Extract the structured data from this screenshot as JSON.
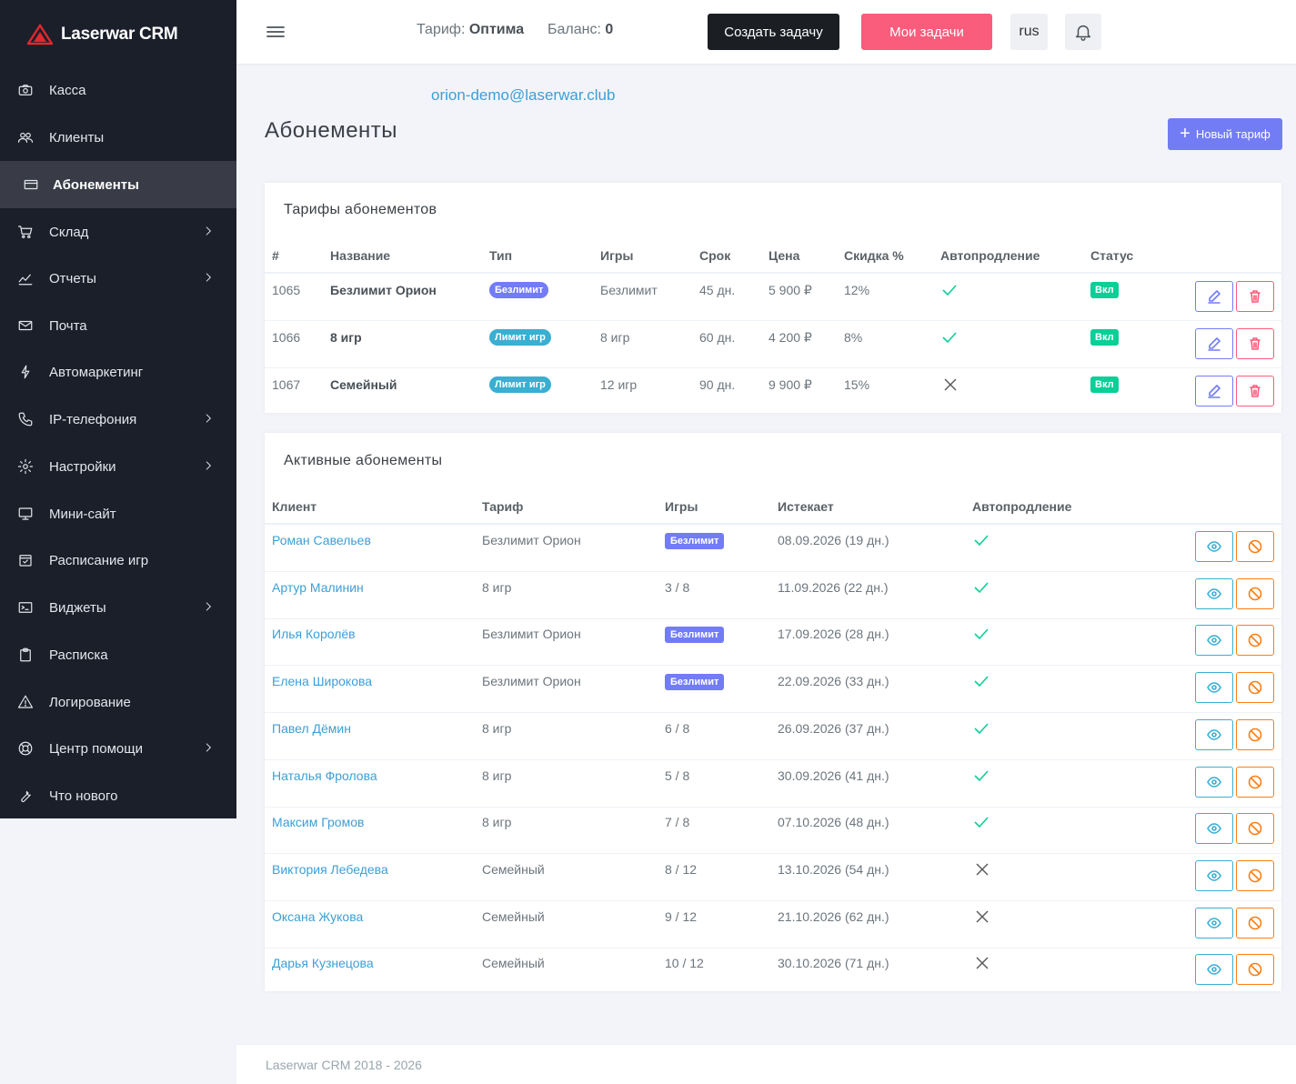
{
  "app": {
    "logo_text": "Laserwar CRM"
  },
  "sidebar": {
    "items": [
      {
        "label": "Касса",
        "icon": "camera-icon",
        "chevron": false,
        "active": false
      },
      {
        "label": "Клиенты",
        "icon": "users-icon",
        "chevron": false,
        "active": false
      },
      {
        "label": "Абонементы",
        "icon": "card-icon",
        "chevron": false,
        "active": true
      },
      {
        "label": "Склад",
        "icon": "cart-icon",
        "chevron": true,
        "active": false
      },
      {
        "label": "Отчеты",
        "icon": "chart-icon",
        "chevron": true,
        "active": false
      },
      {
        "label": "Почта",
        "icon": "mail-icon",
        "chevron": false,
        "active": false
      },
      {
        "label": "Автомаркетинг",
        "icon": "bolt-icon",
        "chevron": false,
        "active": false
      },
      {
        "label": "IP-телефония",
        "icon": "phone-icon",
        "chevron": true,
        "active": false
      },
      {
        "label": "Настройки",
        "icon": "gear-icon",
        "chevron": true,
        "active": false
      },
      {
        "label": "Мини-сайт",
        "icon": "monitor-icon",
        "chevron": false,
        "active": false
      },
      {
        "label": "Расписание игр",
        "icon": "calendar-check-icon",
        "chevron": false,
        "active": false
      },
      {
        "label": "Виджеты",
        "icon": "terminal-icon",
        "chevron": true,
        "active": false
      },
      {
        "label": "Расписка",
        "icon": "clipboard-icon",
        "chevron": false,
        "active": false
      },
      {
        "label": "Логирование",
        "icon": "warning-icon",
        "chevron": false,
        "active": false
      },
      {
        "label": "Центр помощи",
        "icon": "lifebuoy-icon",
        "chevron": true,
        "active": false
      },
      {
        "label": "Что нового",
        "icon": "wrench-icon",
        "chevron": false,
        "active": false
      }
    ]
  },
  "topbar": {
    "tarif_label": "Тариф:",
    "tarif_value": "Оптима",
    "balance_label": "Баланс:",
    "balance_value": "0",
    "create_task": "Создать задачу",
    "my_tasks": "Мои задачи",
    "lang": "rus"
  },
  "user_email": "orion-demo@laserwar.club",
  "page_title": "Абонементы",
  "new_tariff_button": "Новый тариф",
  "tariffs": {
    "title": "Тарифы абонементов",
    "columns": [
      "#",
      "Название",
      "Тип",
      "Игры",
      "Срок",
      "Цена",
      "Скидка %",
      "Автопродление",
      "Статус"
    ],
    "rows": [
      {
        "id": "1065",
        "name": "Безлимит Орион",
        "type": "Безлимит",
        "type_color": "#727cf5",
        "games": "Безлимит",
        "term": "45 дн.",
        "price": "5 900 ₽",
        "discount": "12%",
        "auto": true,
        "status": "Вкл"
      },
      {
        "id": "1066",
        "name": "8 игр",
        "type": "Лимит игр",
        "type_color": "#39afd1",
        "games": "8 игр",
        "term": "60 дн.",
        "price": "4 200 ₽",
        "discount": "8%",
        "auto": true,
        "status": "Вкл"
      },
      {
        "id": "1067",
        "name": "Семейный",
        "type": "Лимит игр",
        "type_color": "#39afd1",
        "games": "12 игр",
        "term": "90 дн.",
        "price": "9 900 ₽",
        "discount": "15%",
        "auto": false,
        "status": "Вкл"
      }
    ]
  },
  "active": {
    "title": "Активные абонементы",
    "columns": [
      "Клиент",
      "Тариф",
      "Игры",
      "Истекает",
      "Автопродление"
    ],
    "rows": [
      {
        "client": "Роман Савельев",
        "tariff": "Безлимит Орион",
        "games": "Безлимит",
        "games_badge": true,
        "expires": "08.09.2026 (19 дн.)",
        "auto": true
      },
      {
        "client": "Артур Малинин",
        "tariff": "8 игр",
        "games": "3 / 8",
        "games_badge": false,
        "expires": "11.09.2026 (22 дн.)",
        "auto": true
      },
      {
        "client": "Илья Королёв",
        "tariff": "Безлимит Орион",
        "games": "Безлимит",
        "games_badge": true,
        "expires": "17.09.2026 (28 дн.)",
        "auto": true
      },
      {
        "client": "Елена Широкова",
        "tariff": "Безлимит Орион",
        "games": "Безлимит",
        "games_badge": true,
        "expires": "22.09.2026 (33 дн.)",
        "auto": true
      },
      {
        "client": "Павел Дёмин",
        "tariff": "8 игр",
        "games": "6 / 8",
        "games_badge": false,
        "expires": "26.09.2026 (37 дн.)",
        "auto": true
      },
      {
        "client": "Наталья Фролова",
        "tariff": "8 игр",
        "games": "5 / 8",
        "games_badge": false,
        "expires": "30.09.2026 (41 дн.)",
        "auto": true
      },
      {
        "client": "Максим Громов",
        "tariff": "8 игр",
        "games": "7 / 8",
        "games_badge": false,
        "expires": "07.10.2026 (48 дн.)",
        "auto": true
      },
      {
        "client": "Виктория Лебедева",
        "tariff": "Семейный",
        "games": "8 / 12",
        "games_badge": false,
        "expires": "13.10.2026 (54 дн.)",
        "auto": false
      },
      {
        "client": "Оксана Жукова",
        "tariff": "Семейный",
        "games": "9 / 12",
        "games_badge": false,
        "expires": "21.10.2026 (62 дн.)",
        "auto": false
      },
      {
        "client": "Дарья Кузнецова",
        "tariff": "Семейный",
        "games": "10 / 12",
        "games_badge": false,
        "expires": "30.10.2026 (71 дн.)",
        "auto": false
      }
    ]
  },
  "footer": "Laserwar CRM 2018 - 2026"
}
